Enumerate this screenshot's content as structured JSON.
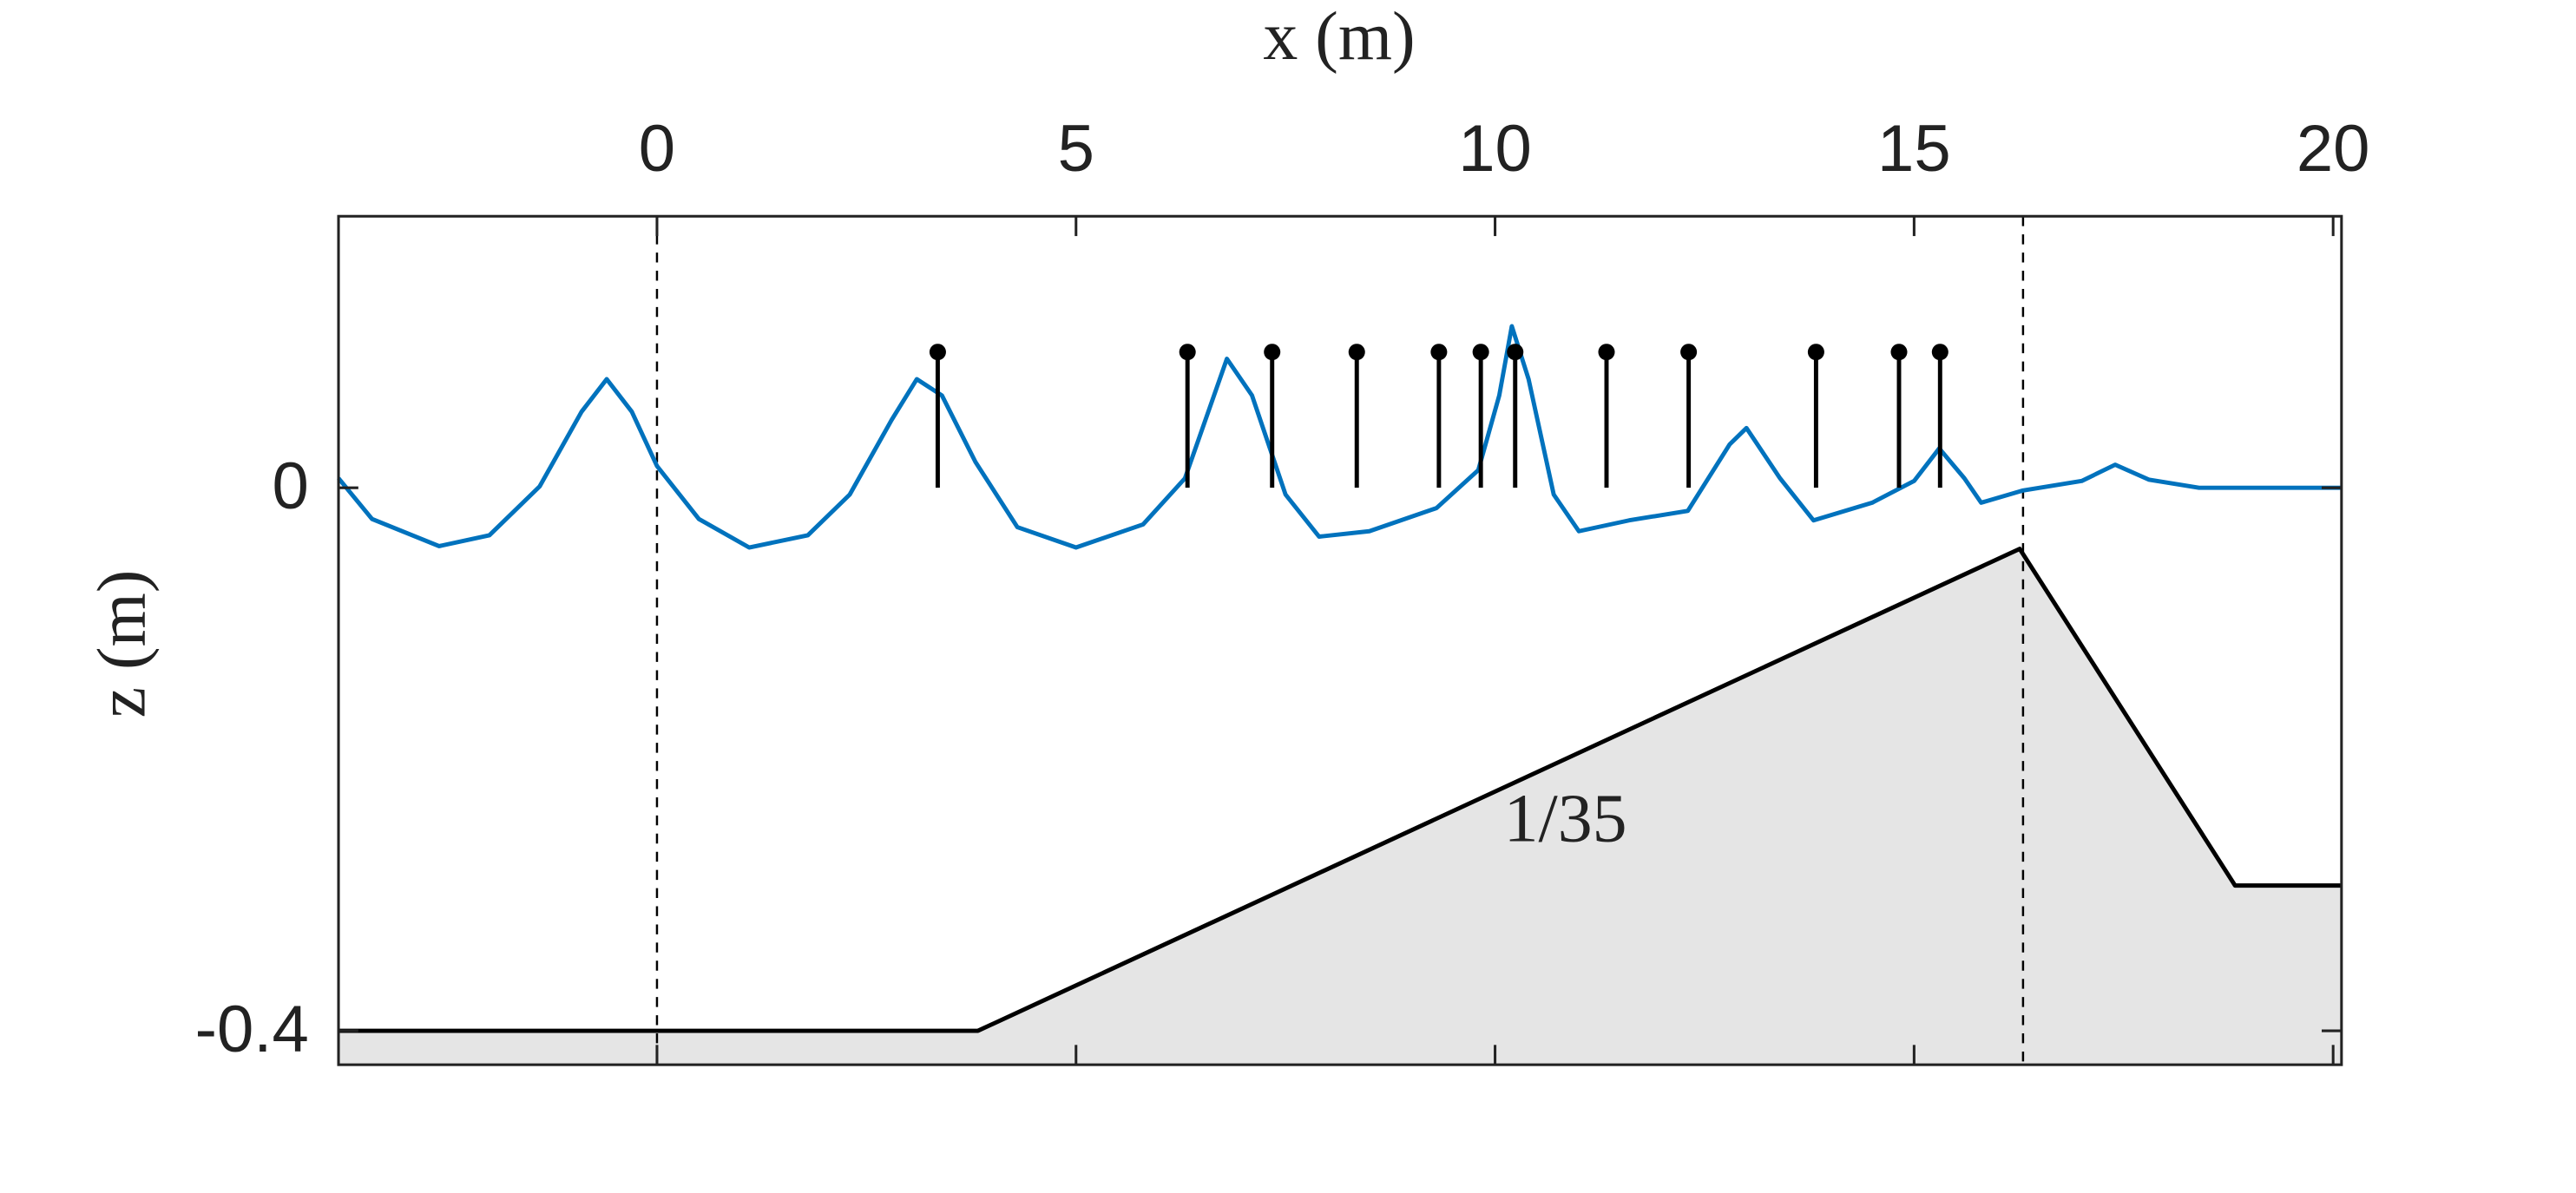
{
  "chart_data": {
    "type": "line",
    "xlabel": "x (m)",
    "ylabel": "z (m)",
    "xlim": [
      -3.8,
      20.1
    ],
    "ylim": [
      -0.425,
      0.2
    ],
    "xticks": [
      0,
      5,
      10,
      15,
      20
    ],
    "yticks": [
      -0.4,
      0
    ],
    "vlines": [
      0,
      16.3
    ],
    "annotations": [
      "1/35"
    ],
    "series": [
      {
        "type": "line",
        "color": "#0072bd",
        "x": [
          -3.8,
          -3.4,
          -2.6,
          -2.0,
          -1.4,
          -0.9,
          -0.6,
          -0.3,
          0,
          0.5,
          1.1,
          1.8,
          2.3,
          2.8,
          3.1,
          3.4,
          3.8,
          4.3,
          5.0,
          5.8,
          6.3,
          6.8,
          7.1,
          7.5,
          7.9,
          8.5,
          9.3,
          9.8,
          10.05,
          10.2,
          10.4,
          10.7,
          11.0,
          11.6,
          12.3,
          12.8,
          13.0,
          13.4,
          13.8,
          14.5,
          15.0,
          15.3,
          15.6,
          15.8,
          16.3,
          17.0,
          17.4,
          17.8,
          18.4,
          20.1
        ],
        "values": [
          0.007,
          -0.023,
          -0.043,
          -0.035,
          0.001,
          0.056,
          0.08,
          0.056,
          0.016,
          -0.023,
          -0.044,
          -0.035,
          -0.005,
          0.05,
          0.08,
          0.068,
          0.019,
          -0.029,
          -0.044,
          -0.027,
          0.007,
          0.095,
          0.068,
          -0.005,
          -0.036,
          -0.032,
          -0.015,
          0.013,
          0.068,
          0.119,
          0.08,
          -0.005,
          -0.032,
          -0.024,
          -0.017,
          0.032,
          0.044,
          0.007,
          -0.024,
          -0.011,
          0.005,
          0.029,
          0.007,
          -0.011,
          -0.002,
          0.005,
          0.017,
          0.006,
          0,
          0
        ]
      },
      {
        "type": "area",
        "color": "#000000",
        "fill": "#e5e5e5",
        "x": [
          -3.8,
          3.83,
          16.26,
          18.83,
          20.1
        ],
        "values": [
          -0.4,
          -0.4,
          -0.045,
          -0.293,
          -0.293
        ]
      },
      {
        "type": "stem",
        "color": "#000000",
        "x": [
          3.35,
          6.33,
          7.34,
          8.35,
          9.33,
          9.83,
          10.24,
          11.33,
          12.31,
          13.83,
          14.82,
          15.31
        ],
        "values": [
          0.1,
          0.1,
          0.1,
          0.1,
          0.1,
          0.1,
          0.1,
          0.1,
          0.1,
          0.1,
          0.1,
          0.1
        ]
      }
    ]
  }
}
